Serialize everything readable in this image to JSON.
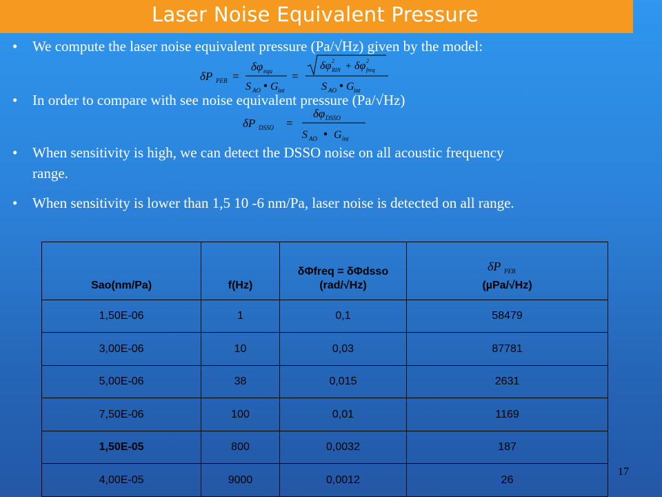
{
  "title": "Laser Noise Equivalent Pressure",
  "bullet_symbol": "•",
  "bullets": [
    "We compute the laser noise equivalent pressure (Pa/√Hz) given by the model:",
    "In order to compare with see noise equivalent pressure    (Pa/√Hz)",
    "When sensitivity is high, we can detect the DSSO noise on all acoustic frequency",
    "range.",
    "When sensitivity is  lower than 1,5 10 -6 nm/Pa, laser noise is detected on all range."
  ],
  "table": {
    "headers": [
      "Sao(nm/Pa)",
      "f(Hz)",
      "δΦfreq = δΦdsso",
      "(rad/√Hz)",
      "(µPa/√Hz)"
    ],
    "rows": [
      [
        "1,50E-06",
        "1",
        "0,1",
        "58479"
      ],
      [
        "3,00E-06",
        "10",
        "0,03",
        "87781"
      ],
      [
        "5,00E-06",
        "38",
        "0,015",
        "2631"
      ],
      [
        "7,50E-06",
        "100",
        "0,01",
        "1169"
      ],
      [
        "1,50E-05",
        "800",
        "0,0032",
        "187"
      ],
      [
        "4,00E-05",
        "9000",
        "0,0012",
        "26"
      ]
    ]
  },
  "page_number": "17"
}
